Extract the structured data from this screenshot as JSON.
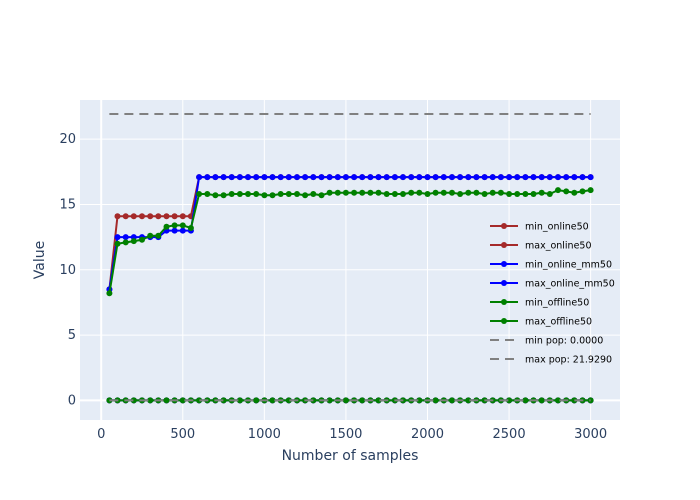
{
  "chart_data": {
    "type": "line",
    "xlabel": "Number of samples",
    "ylabel": "Value",
    "xlim": [
      -130,
      3180
    ],
    "ylim": [
      -1.5,
      23
    ],
    "xticks": [
      0,
      500,
      1000,
      1500,
      2000,
      2500,
      3000
    ],
    "yticks": [
      0,
      5,
      10,
      15,
      20
    ],
    "xtick_labels": [
      "0",
      "500",
      "1000",
      "1500",
      "2000",
      "2500",
      "3000"
    ],
    "ytick_labels": [
      "0",
      "5",
      "10",
      "15",
      "20"
    ],
    "grid": true,
    "legend_position": "right",
    "x": [
      50,
      100,
      150,
      200,
      250,
      300,
      350,
      400,
      450,
      500,
      550,
      600,
      650,
      700,
      750,
      800,
      850,
      900,
      950,
      1000,
      1050,
      1100,
      1150,
      1200,
      1250,
      1300,
      1350,
      1400,
      1450,
      1500,
      1550,
      1600,
      1650,
      1700,
      1750,
      1800,
      1850,
      1900,
      1950,
      2000,
      2050,
      2100,
      2150,
      2200,
      2250,
      2300,
      2350,
      2400,
      2450,
      2500,
      2550,
      2600,
      2650,
      2700,
      2750,
      2800,
      2850,
      2900,
      2950,
      3000
    ],
    "series": [
      {
        "name": "min_online50",
        "color": "#a52a2a",
        "style": "solid-marker",
        "values": [
          0,
          0,
          0,
          0,
          0,
          0,
          0,
          0,
          0,
          0,
          0,
          0,
          0,
          0,
          0,
          0,
          0,
          0,
          0,
          0,
          0,
          0,
          0,
          0,
          0,
          0,
          0,
          0,
          0,
          0,
          0,
          0,
          0,
          0,
          0,
          0,
          0,
          0,
          0,
          0,
          0,
          0,
          0,
          0,
          0,
          0,
          0,
          0,
          0,
          0,
          0,
          0,
          0,
          0,
          0,
          0,
          0,
          0,
          0,
          0
        ]
      },
      {
        "name": "max_online50",
        "color": "#a52a2a",
        "style": "solid-marker",
        "values": [
          8.5,
          14.1,
          14.1,
          14.1,
          14.1,
          14.1,
          14.1,
          14.1,
          14.1,
          14.1,
          14.1,
          17.1,
          17.1,
          17.1,
          17.1,
          17.1,
          17.1,
          17.1,
          17.1,
          17.1,
          17.1,
          17.1,
          17.1,
          17.1,
          17.1,
          17.1,
          17.1,
          17.1,
          17.1,
          17.1,
          17.1,
          17.1,
          17.1,
          17.1,
          17.1,
          17.1,
          17.1,
          17.1,
          17.1,
          17.1,
          17.1,
          17.1,
          17.1,
          17.1,
          17.1,
          17.1,
          17.1,
          17.1,
          17.1,
          17.1,
          17.1,
          17.1,
          17.1,
          17.1,
          17.1,
          17.1,
          17.1,
          17.1,
          17.1,
          17.1
        ]
      },
      {
        "name": "min_online_mm50",
        "color": "#0000ff",
        "style": "solid-marker",
        "values": [
          0,
          0,
          0,
          0,
          0,
          0,
          0,
          0,
          0,
          0,
          0,
          0,
          0,
          0,
          0,
          0,
          0,
          0,
          0,
          0,
          0,
          0,
          0,
          0,
          0,
          0,
          0,
          0,
          0,
          0,
          0,
          0,
          0,
          0,
          0,
          0,
          0,
          0,
          0,
          0,
          0,
          0,
          0,
          0,
          0,
          0,
          0,
          0,
          0,
          0,
          0,
          0,
          0,
          0,
          0,
          0,
          0,
          0,
          0,
          0
        ]
      },
      {
        "name": "max_online_mm50",
        "color": "#0000ff",
        "style": "solid-marker",
        "values": [
          8.5,
          12.5,
          12.5,
          12.5,
          12.5,
          12.5,
          12.5,
          13.0,
          13.0,
          13.0,
          13.0,
          17.1,
          17.1,
          17.1,
          17.1,
          17.1,
          17.1,
          17.1,
          17.1,
          17.1,
          17.1,
          17.1,
          17.1,
          17.1,
          17.1,
          17.1,
          17.1,
          17.1,
          17.1,
          17.1,
          17.1,
          17.1,
          17.1,
          17.1,
          17.1,
          17.1,
          17.1,
          17.1,
          17.1,
          17.1,
          17.1,
          17.1,
          17.1,
          17.1,
          17.1,
          17.1,
          17.1,
          17.1,
          17.1,
          17.1,
          17.1,
          17.1,
          17.1,
          17.1,
          17.1,
          17.1,
          17.1,
          17.1,
          17.1,
          17.1
        ]
      },
      {
        "name": "min_offline50",
        "color": "#008000",
        "style": "solid-marker",
        "values": [
          0,
          0,
          0,
          0,
          0,
          0,
          0,
          0,
          0,
          0,
          0,
          0,
          0,
          0,
          0,
          0,
          0,
          0,
          0,
          0,
          0,
          0,
          0,
          0,
          0,
          0,
          0,
          0,
          0,
          0,
          0,
          0,
          0,
          0,
          0,
          0,
          0,
          0,
          0,
          0,
          0,
          0,
          0,
          0,
          0,
          0,
          0,
          0,
          0,
          0,
          0,
          0,
          0,
          0,
          0,
          0,
          0,
          0,
          0,
          0
        ]
      },
      {
        "name": "max_offline50",
        "color": "#008000",
        "style": "solid-marker",
        "values": [
          8.2,
          12.0,
          12.1,
          12.2,
          12.3,
          12.6,
          12.6,
          13.3,
          13.4,
          13.4,
          13.2,
          15.8,
          15.8,
          15.7,
          15.7,
          15.8,
          15.8,
          15.8,
          15.8,
          15.7,
          15.7,
          15.8,
          15.8,
          15.8,
          15.7,
          15.8,
          15.7,
          15.9,
          15.9,
          15.9,
          15.9,
          15.9,
          15.9,
          15.9,
          15.8,
          15.8,
          15.8,
          15.9,
          15.9,
          15.8,
          15.9,
          15.9,
          15.9,
          15.8,
          15.9,
          15.9,
          15.8,
          15.9,
          15.9,
          15.8,
          15.8,
          15.8,
          15.8,
          15.9,
          15.8,
          16.1,
          16.0,
          15.9,
          16.0,
          16.1
        ]
      },
      {
        "name": "min pop: 0.0000",
        "color": "#808080",
        "style": "dash",
        "x_range": [
          50,
          3000
        ],
        "value": 0.0
      },
      {
        "name": "max pop: 21.9290",
        "color": "#808080",
        "style": "dash",
        "x_range": [
          50,
          3000
        ],
        "value": 21.929
      }
    ]
  }
}
